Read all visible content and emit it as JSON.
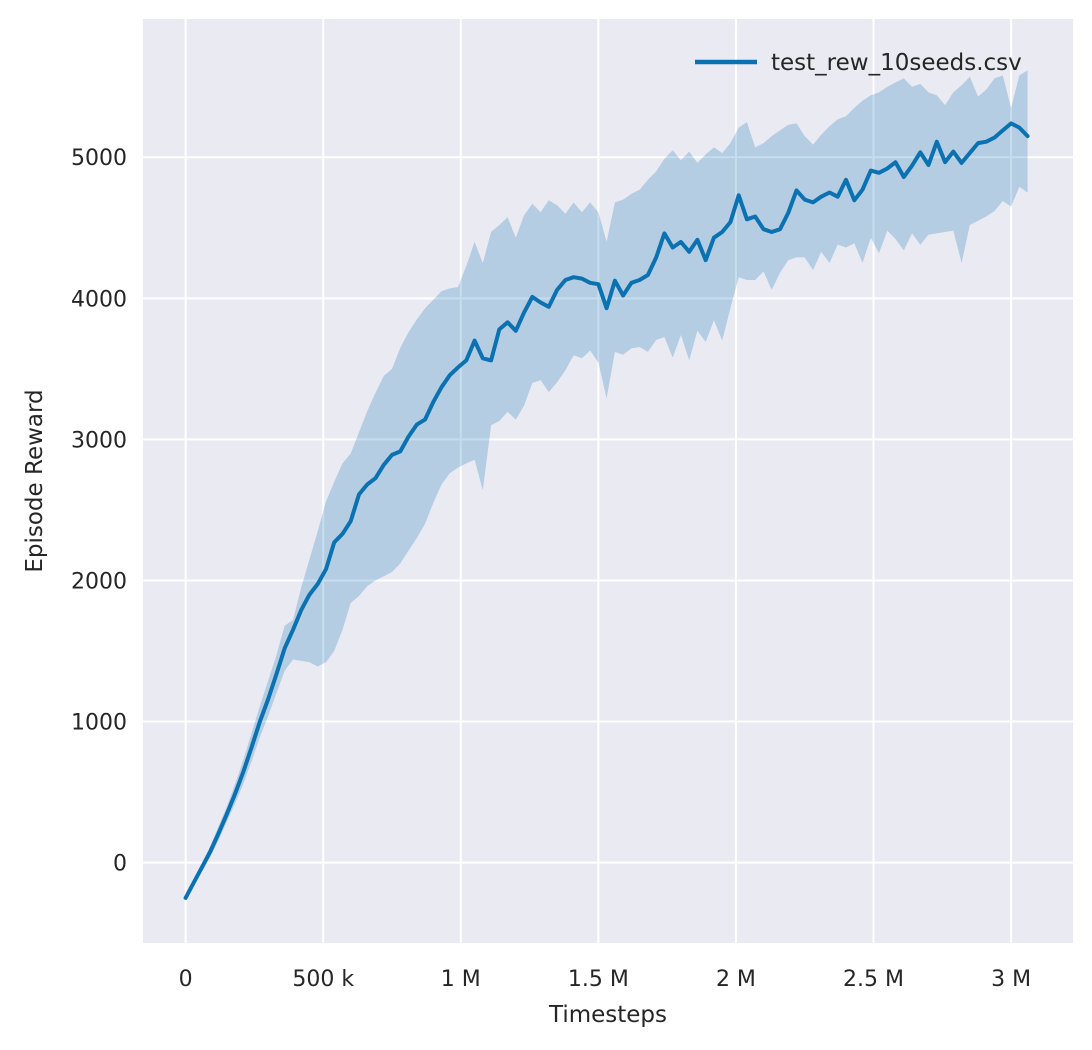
{
  "chart_data": {
    "type": "line",
    "title": "",
    "xlabel": "Timesteps",
    "ylabel": "Episode Reward",
    "grid": true,
    "legend": {
      "position": "upper right",
      "entries": [
        {
          "label": "test_rew_10seeds.csv",
          "color": "#0b72b2"
        }
      ]
    },
    "style": {
      "figure_background": "#ffffff",
      "axes_background": "#eaeaf2",
      "grid_color": "#ffffff",
      "text_color": "#262626",
      "line_color": "#0b72b2",
      "band_color": "#0b72b2",
      "band_opacity": 0.24,
      "line_width": 4
    },
    "xlim": [
      -155000,
      3225000
    ],
    "ylim": [
      -570,
      5980
    ],
    "x_ticks": [
      {
        "value": 0,
        "label": "0"
      },
      {
        "value": 500000,
        "label": "500 k"
      },
      {
        "value": 1000000,
        "label": "1 M"
      },
      {
        "value": 1500000,
        "label": "1.5 M"
      },
      {
        "value": 2000000,
        "label": "2 M"
      },
      {
        "value": 2500000,
        "label": "2.5 M"
      },
      {
        "value": 3000000,
        "label": "3 M"
      }
    ],
    "y_ticks": [
      {
        "value": 0,
        "label": "0"
      },
      {
        "value": 1000,
        "label": "1000"
      },
      {
        "value": 2000,
        "label": "2000"
      },
      {
        "value": 3000,
        "label": "3000"
      },
      {
        "value": 4000,
        "label": "4000"
      },
      {
        "value": 5000,
        "label": "5000"
      }
    ],
    "series": [
      {
        "name": "test_rew_10seeds.csv",
        "color": "#0b72b2",
        "x": [
          0,
          30000,
          60000,
          90000,
          120000,
          150000,
          180000,
          210000,
          240000,
          270000,
          300000,
          330000,
          360000,
          390000,
          420000,
          450000,
          480000,
          510000,
          540000,
          570000,
          600000,
          630000,
          660000,
          690000,
          720000,
          750000,
          780000,
          810000,
          840000,
          870000,
          900000,
          930000,
          960000,
          990000,
          1020000,
          1050000,
          1080000,
          1110000,
          1140000,
          1170000,
          1200000,
          1230000,
          1260000,
          1290000,
          1320000,
          1350000,
          1380000,
          1410000,
          1440000,
          1470000,
          1500000,
          1530000,
          1560000,
          1590000,
          1620000,
          1650000,
          1680000,
          1710000,
          1740000,
          1770000,
          1800000,
          1830000,
          1860000,
          1890000,
          1920000,
          1950000,
          1980000,
          2010000,
          2040000,
          2070000,
          2100000,
          2130000,
          2160000,
          2190000,
          2220000,
          2250000,
          2280000,
          2310000,
          2340000,
          2370000,
          2400000,
          2430000,
          2460000,
          2490000,
          2520000,
          2550000,
          2580000,
          2610000,
          2640000,
          2670000,
          2700000,
          2730000,
          2760000,
          2790000,
          2820000,
          2850000,
          2880000,
          2910000,
          2940000,
          2970000,
          3000000,
          3030000,
          3060000
        ],
        "mean": [
          -250,
          -140,
          -30,
          80,
          210,
          345,
          490,
          645,
          820,
          1000,
          1160,
          1335,
          1520,
          1650,
          1790,
          1900,
          1975,
          2080,
          2270,
          2330,
          2420,
          2610,
          2680,
          2725,
          2820,
          2890,
          2915,
          3020,
          3105,
          3140,
          3265,
          3370,
          3455,
          3510,
          3560,
          3700,
          3575,
          3560,
          3780,
          3830,
          3770,
          3900,
          4010,
          3970,
          3940,
          4060,
          4130,
          4150,
          4140,
          4110,
          4100,
          3930,
          4125,
          4020,
          4110,
          4130,
          4165,
          4290,
          4460,
          4360,
          4400,
          4330,
          4415,
          4270,
          4430,
          4470,
          4540,
          4730,
          4560,
          4580,
          4490,
          4470,
          4490,
          4605,
          4765,
          4700,
          4680,
          4720,
          4750,
          4720,
          4840,
          4695,
          4770,
          4905,
          4890,
          4920,
          4965,
          4860,
          4940,
          5035,
          4945,
          5110,
          4965,
          5040,
          4960,
          5030,
          5100,
          5110,
          5140,
          5190,
          5240,
          5210,
          5150
        ],
        "band_lower": [
          -270,
          -165,
          -60,
          40,
          160,
          290,
          420,
          560,
          720,
          890,
          1040,
          1200,
          1360,
          1440,
          1430,
          1420,
          1390,
          1420,
          1500,
          1650,
          1840,
          1890,
          1960,
          2000,
          2030,
          2060,
          2120,
          2210,
          2300,
          2400,
          2550,
          2680,
          2760,
          2800,
          2830,
          2855,
          2640,
          3100,
          3130,
          3195,
          3140,
          3240,
          3400,
          3420,
          3335,
          3405,
          3490,
          3595,
          3575,
          3630,
          3545,
          3290,
          3620,
          3600,
          3645,
          3655,
          3620,
          3705,
          3725,
          3580,
          3740,
          3560,
          3770,
          3690,
          3845,
          3700,
          3930,
          4150,
          4130,
          4130,
          4190,
          4060,
          4180,
          4270,
          4290,
          4290,
          4200,
          4330,
          4250,
          4380,
          4360,
          4390,
          4250,
          4430,
          4320,
          4480,
          4420,
          4340,
          4460,
          4380,
          4450,
          4460,
          4470,
          4480,
          4250,
          4520,
          4550,
          4580,
          4620,
          4690,
          4650,
          4790,
          4750
        ],
        "band_upper": [
          -230,
          -115,
          0,
          120,
          260,
          400,
          560,
          730,
          920,
          1110,
          1290,
          1470,
          1680,
          1720,
          1950,
          2150,
          2350,
          2560,
          2700,
          2830,
          2900,
          3050,
          3200,
          3330,
          3450,
          3500,
          3650,
          3760,
          3850,
          3930,
          3990,
          4050,
          4070,
          4080,
          4230,
          4400,
          4250,
          4470,
          4520,
          4575,
          4430,
          4590,
          4670,
          4610,
          4695,
          4660,
          4600,
          4680,
          4610,
          4680,
          4610,
          4400,
          4680,
          4700,
          4740,
          4770,
          4840,
          4900,
          4990,
          5050,
          4980,
          5040,
          4960,
          5020,
          5070,
          5030,
          5100,
          5210,
          5250,
          5070,
          5100,
          5150,
          5190,
          5230,
          5240,
          5150,
          5090,
          5160,
          5220,
          5270,
          5290,
          5350,
          5400,
          5440,
          5460,
          5500,
          5530,
          5560,
          5500,
          5520,
          5460,
          5440,
          5370,
          5460,
          5510,
          5570,
          5430,
          5480,
          5560,
          5580,
          5350,
          5580,
          5615
        ]
      }
    ]
  }
}
